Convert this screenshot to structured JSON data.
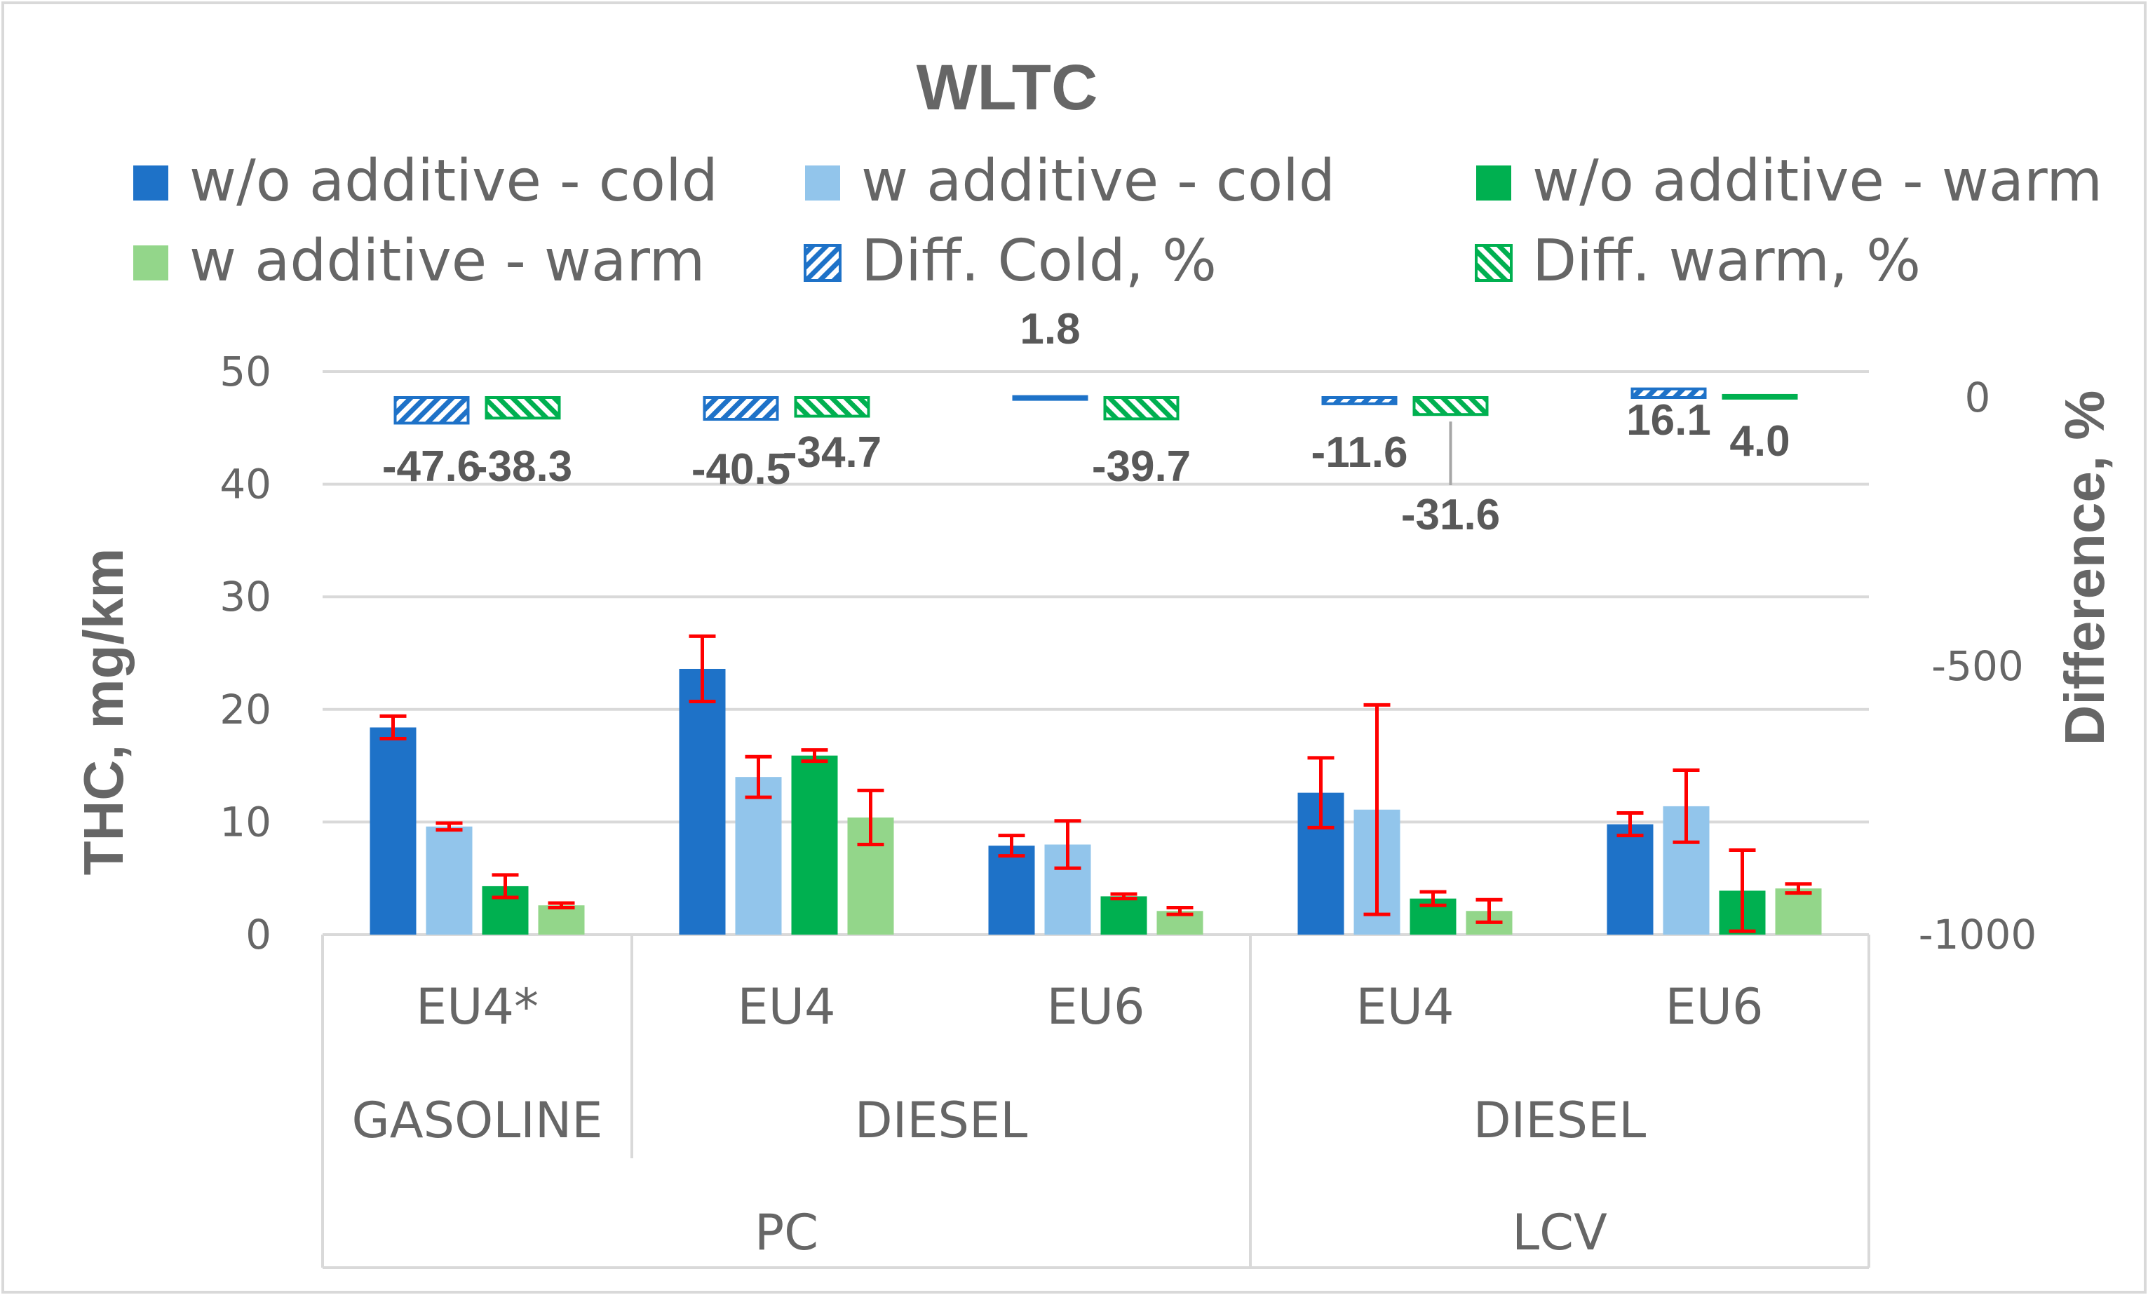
{
  "chart_data": {
    "type": "bar",
    "title": "WLTC",
    "ylabel": "THC, mg/km",
    "ylim": [
      0,
      50
    ],
    "yticks": [
      "0",
      "10",
      "20",
      "30",
      "40",
      "50"
    ],
    "y2label": "Difference, %",
    "y2lim": [
      -1000,
      0
    ],
    "y2ticks": [
      "-1000",
      "-500",
      "0"
    ],
    "categories": [
      {
        "standard": "EU4*",
        "fuel": "GASOLINE",
        "vehicle": "PC"
      },
      {
        "standard": "EU4",
        "fuel": "DIESEL",
        "vehicle": "PC"
      },
      {
        "standard": "EU6",
        "fuel": "DIESEL",
        "vehicle": "PC"
      },
      {
        "standard": "EU4",
        "fuel": "DIESEL",
        "vehicle": "LCV"
      },
      {
        "standard": "EU6",
        "fuel": "DIESEL",
        "vehicle": "LCV"
      }
    ],
    "fuel_groups": [
      {
        "label": "GASOLINE",
        "span": [
          0,
          0
        ]
      },
      {
        "label": "DIESEL",
        "span": [
          1,
          2
        ]
      },
      {
        "label": "DIESEL",
        "span": [
          3,
          4
        ]
      }
    ],
    "vehicle_groups": [
      {
        "label": "PC",
        "span": [
          0,
          2
        ]
      },
      {
        "label": "LCV",
        "span": [
          3,
          4
        ]
      }
    ],
    "series": [
      {
        "name": "w/o additive - cold",
        "color": "#1e72c8",
        "values": [
          18.4,
          23.6,
          7.9,
          12.6,
          9.8
        ],
        "err": [
          1.0,
          2.9,
          0.9,
          3.1,
          1.0
        ]
      },
      {
        "name": "w additive - cold",
        "color": "#92c5eb",
        "values": [
          9.6,
          14.0,
          8.0,
          11.1,
          11.4
        ],
        "err": [
          0.3,
          1.8,
          2.1,
          9.3,
          3.2
        ]
      },
      {
        "name": "w/o additive - warm",
        "color": "#00b050",
        "values": [
          4.3,
          15.9,
          3.4,
          3.2,
          3.9
        ],
        "err": [
          1.0,
          0.5,
          0.2,
          0.6,
          3.6
        ]
      },
      {
        "name": "w additive - warm",
        "color": "#93d68a",
        "values": [
          2.6,
          10.4,
          2.1,
          2.1,
          4.1
        ],
        "err": [
          0.2,
          2.4,
          0.3,
          1.0,
          0.4
        ]
      }
    ],
    "difference_series": [
      {
        "name": "Diff. Cold, %",
        "color": "#1e72c8",
        "values": [
          -47.6,
          -40.5,
          1.8,
          -11.6,
          16.1
        ],
        "labels": [
          "-47.6",
          "-40.5",
          "1.8",
          "-11.6",
          "16.1"
        ]
      },
      {
        "name": "Diff. warm, %",
        "color": "#00b050",
        "values": [
          -38.3,
          -34.7,
          -39.7,
          -31.6,
          4.0
        ],
        "labels": [
          "-38.3",
          "-34.7",
          "-39.7",
          "-31.6",
          "4.0"
        ]
      }
    ]
  }
}
